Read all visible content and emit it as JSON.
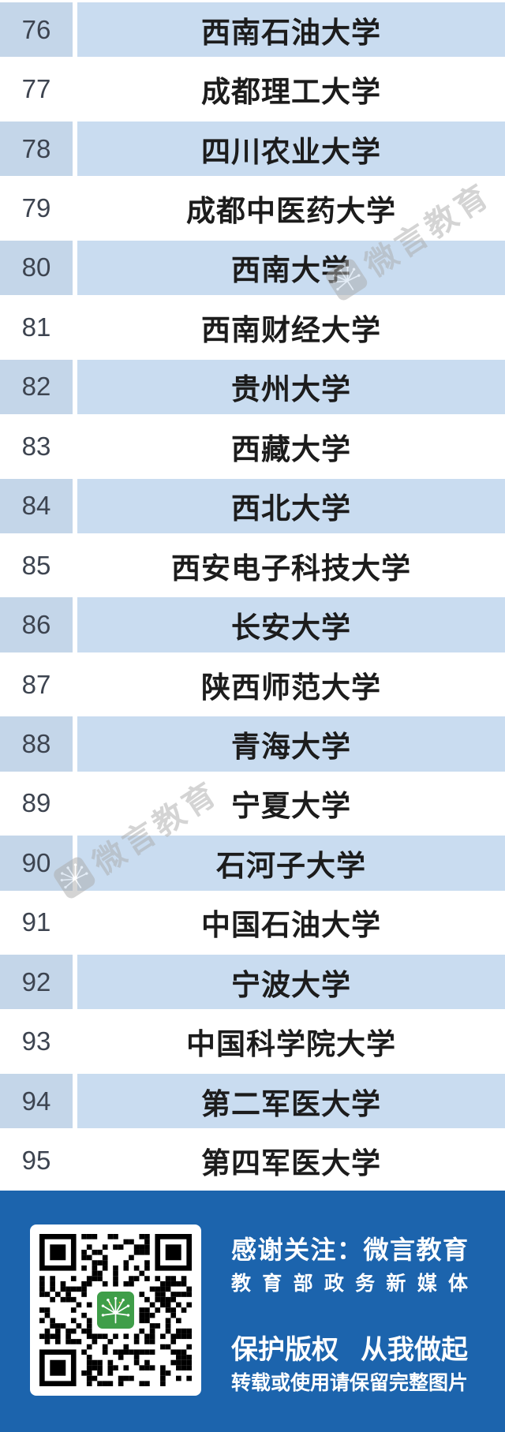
{
  "table": {
    "rows": [
      {
        "rank": "76",
        "name": "西南石油大学"
      },
      {
        "rank": "77",
        "name": "成都理工大学"
      },
      {
        "rank": "78",
        "name": "四川农业大学"
      },
      {
        "rank": "79",
        "name": "成都中医药大学"
      },
      {
        "rank": "80",
        "name": "西南大学"
      },
      {
        "rank": "81",
        "name": "西南财经大学"
      },
      {
        "rank": "82",
        "name": "贵州大学"
      },
      {
        "rank": "83",
        "name": "西藏大学"
      },
      {
        "rank": "84",
        "name": "西北大学"
      },
      {
        "rank": "85",
        "name": "西安电子科技大学"
      },
      {
        "rank": "86",
        "name": "长安大学"
      },
      {
        "rank": "87",
        "name": "陕西师范大学"
      },
      {
        "rank": "88",
        "name": "青海大学"
      },
      {
        "rank": "89",
        "name": "宁夏大学"
      },
      {
        "rank": "90",
        "name": "石河子大学"
      },
      {
        "rank": "91",
        "name": "中国石油大学"
      },
      {
        "rank": "92",
        "name": "宁波大学"
      },
      {
        "rank": "93",
        "name": "中国科学院大学"
      },
      {
        "rank": "94",
        "name": "第二军医大学"
      },
      {
        "rank": "95",
        "name": "第四军医大学"
      }
    ]
  },
  "watermark": {
    "label": "微言教育"
  },
  "footer": {
    "thanks_line": "感谢关注：微言教育",
    "subtitle_line": "教育部政务新媒体",
    "copyright_left": "保护版权",
    "copyright_right": "从我做起",
    "notice_line": "转载或使用请保留完整图片"
  },
  "colors": {
    "row_blue": "#c9dcf0",
    "rank_col_blue": "#c4d6e9",
    "footer_blue": "#1c64ad",
    "logo_green": "#3f9e49",
    "name_text": "#1c1c1c",
    "rank_text": "#3d4450"
  }
}
